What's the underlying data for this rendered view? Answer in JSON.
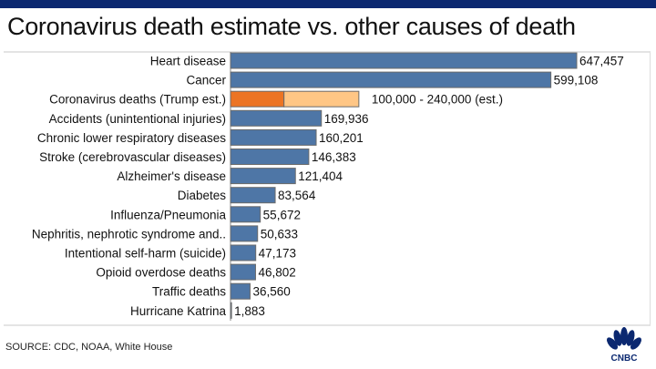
{
  "title": "Coronavirus death estimate vs. other causes of death",
  "source": "SOURCE: CDC, NOAA, White House",
  "logo": {
    "text": "CNBC",
    "icon": "cnbc-peacock-icon"
  },
  "colors": {
    "bar": "#4e76a6",
    "covid_low": "#ec7424",
    "covid_high": "#ffc685",
    "header": "#0b2870"
  },
  "chart_data": {
    "type": "bar",
    "orientation": "horizontal",
    "title": "Coronavirus death estimate vs. other causes of death",
    "xlabel": "",
    "ylabel": "",
    "grid": false,
    "xlim": [
      0,
      650000
    ],
    "categories": [
      "Heart disease",
      "Cancer",
      "Coronavirus deaths (Trump est.)",
      "Accidents (unintentional injuries)",
      "Chronic lower respiratory diseases",
      "Stroke (cerebrovascular diseases)",
      "Alzheimer's disease",
      "Diabetes",
      "Influenza/Pneumonia",
      "Nephritis, nephrotic syndrome and..",
      "Intentional self-harm (suicide)",
      "Opioid overdose deaths",
      "Traffic deaths",
      "Hurricane Katrina"
    ],
    "values": [
      647457,
      599108,
      null,
      169936,
      160201,
      146383,
      121404,
      83564,
      55672,
      50633,
      47173,
      46802,
      36560,
      1883
    ],
    "labels": [
      "647,457",
      "599,108",
      "100,000 - 240,000 (est.)",
      "169,936",
      "160,201",
      "146,383",
      "121,404",
      "83,564",
      "55,672",
      "50,633",
      "47,173",
      "46,802",
      "36,560",
      "1,883"
    ],
    "range_series": {
      "category": "Coronavirus deaths (Trump est.)",
      "low": 100000,
      "high": 240000
    }
  }
}
